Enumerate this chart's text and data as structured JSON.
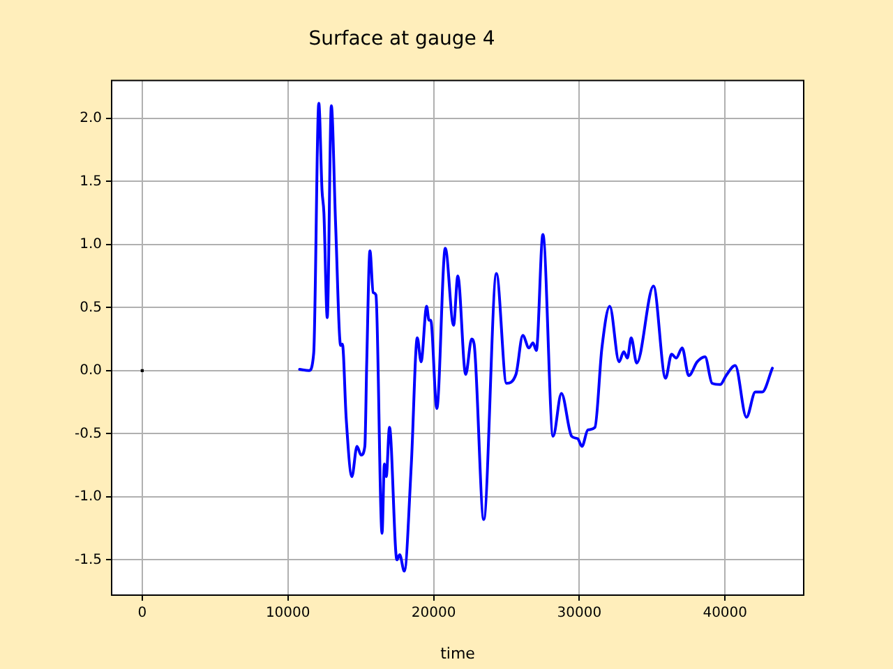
{
  "chart_data": {
    "type": "line",
    "title": "Surface at gauge 4",
    "xlabel": "time",
    "xlim": [
      -2100,
      45400
    ],
    "xticks": [
      0,
      10000,
      20000,
      30000,
      40000
    ],
    "ylim": [
      -1.78,
      2.3
    ],
    "yticks": [
      {
        "value": -1.5,
        "label": "-1.5"
      },
      {
        "value": -1,
        "label": "-1.0"
      },
      {
        "value": -0.5,
        "label": "-0.5"
      },
      {
        "value": 0,
        "label": "0.0"
      },
      {
        "value": 0.5,
        "label": "0.5"
      },
      {
        "value": 1,
        "label": "1.0"
      },
      {
        "value": 1.5,
        "label": "1.5"
      },
      {
        "value": 2,
        "label": "2.0"
      }
    ],
    "grid": true,
    "legend": false,
    "marker": "none",
    "line_style": "solid",
    "series": [
      {
        "color": "#0000ff",
        "x": [
          10800,
          11450,
          11770,
          12120,
          12340,
          12470,
          12700,
          12980,
          13270,
          13620,
          13740,
          14000,
          14390,
          14740,
          15020,
          15280,
          15410,
          15630,
          15850,
          16040,
          16460,
          16620,
          16750,
          16970,
          17480,
          17670,
          17990,
          18470,
          18880,
          19140,
          19520,
          19680,
          19800,
          20220,
          20800,
          21370,
          21660,
          22200,
          22610,
          22780,
          23440,
          24310,
          25000,
          25650,
          26120,
          26540,
          26820,
          27050,
          27500,
          28200,
          28770,
          29470,
          29890,
          30180,
          30590,
          31070,
          31550,
          32090,
          32730,
          33050,
          33300,
          33560,
          33940,
          35090,
          35920,
          36330,
          36650,
          37060,
          37510,
          38090,
          38630,
          39110,
          39680,
          40070,
          40700,
          41470,
          42080,
          42550,
          43250
        ],
        "values": [
          0.01,
          0.0,
          0.14,
          2.12,
          1.43,
          1.25,
          0.42,
          2.1,
          1.17,
          0.2,
          0.21,
          -0.38,
          -0.84,
          -0.6,
          -0.67,
          -0.6,
          0.07,
          0.95,
          0.62,
          0.6,
          -1.29,
          -0.74,
          -0.84,
          -0.45,
          -1.5,
          -1.46,
          -1.59,
          -0.74,
          0.26,
          0.07,
          0.51,
          0.4,
          0.4,
          -0.3,
          0.97,
          0.36,
          0.75,
          -0.03,
          0.25,
          0.21,
          -1.18,
          0.77,
          -0.1,
          -0.03,
          0.28,
          0.18,
          0.22,
          0.16,
          1.08,
          -0.52,
          -0.18,
          -0.52,
          -0.54,
          -0.6,
          -0.47,
          -0.45,
          0.18,
          0.51,
          0.07,
          0.15,
          0.1,
          0.26,
          0.06,
          0.67,
          -0.06,
          0.13,
          0.1,
          0.18,
          -0.04,
          0.07,
          0.11,
          -0.1,
          -0.11,
          -0.04,
          0.04,
          -0.37,
          -0.17,
          -0.17,
          0.02
        ]
      },
      {
        "type": "scatter",
        "color": "#000000",
        "marker": "square",
        "x": [
          0
        ],
        "values": [
          0.0
        ]
      }
    ]
  }
}
